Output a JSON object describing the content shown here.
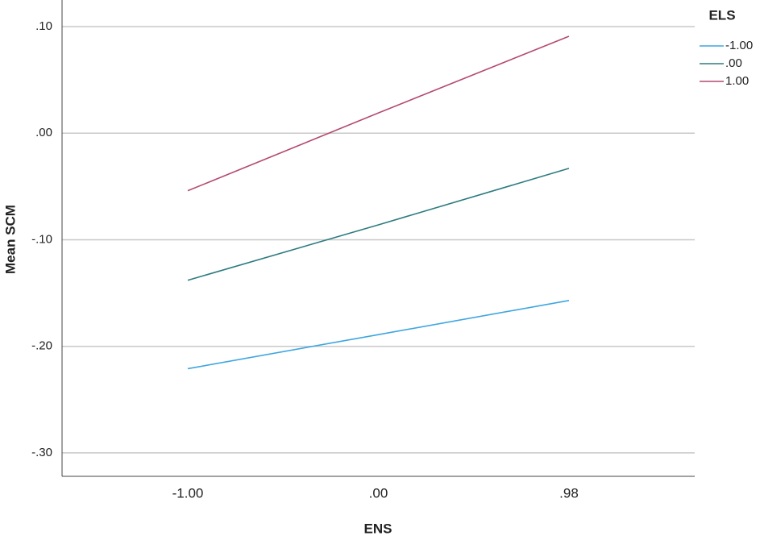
{
  "chart_data": {
    "type": "line",
    "x_label": "ENS",
    "y_label": "Mean SCM",
    "legend_title": "ELS",
    "categories": [
      "-1.00",
      ".00",
      ".98"
    ],
    "series": [
      {
        "name": "-1.00",
        "color": "#3fa6e0",
        "values": [
          -0.221,
          -0.189,
          -0.157
        ]
      },
      {
        "name": ".00",
        "color": "#2d7b7f",
        "values": [
          -0.138,
          -0.086,
          -0.033
        ]
      },
      {
        "name": "1.00",
        "color": "#b44a72",
        "values": [
          -0.054,
          0.019,
          0.091
        ]
      }
    ],
    "ylim": [
      -0.322,
      0.125
    ],
    "yticks": [
      {
        "value": 0.1,
        "label": ".10"
      },
      {
        "value": 0,
        "label": ".00"
      },
      {
        "value": -0.1,
        "label": "-.10"
      },
      {
        "value": -0.2,
        "label": "-.20"
      },
      {
        "value": -0.3,
        "label": "-.30"
      }
    ],
    "grid": true,
    "legend": "right"
  }
}
